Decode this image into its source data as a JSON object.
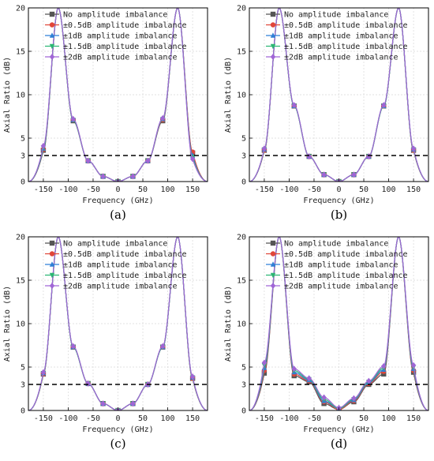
{
  "legend": [
    {
      "label": "No amplitude imbalance",
      "color": "#555555",
      "marker": "square"
    },
    {
      "label": "±0.5dB amplitude imbalance",
      "color": "#e0463a",
      "marker": "circle"
    },
    {
      "label": "±1dB amplitude imbalance",
      "color": "#2f7fd6",
      "marker": "triangle-up"
    },
    {
      "label": "±1.5dB amplitude imbalance",
      "color": "#2bb673",
      "marker": "triangle-down"
    },
    {
      "label": "±2dB amplitude imbalance",
      "color": "#a066d6",
      "marker": "diamond"
    }
  ],
  "chart_data": [
    {
      "type": "line",
      "panel_label": "(a)",
      "xlabel": "Frequency (GHz)",
      "ylabel": "Axial Ratio (dB)",
      "xlim": [
        -180,
        180
      ],
      "ylim": [
        0,
        20
      ],
      "xticks": [
        -150,
        -100,
        -50,
        0,
        50,
        100,
        150
      ],
      "yticks": [
        0,
        3,
        5,
        10,
        15,
        20
      ],
      "threshold": 3,
      "x": [
        -150,
        -120,
        -90,
        -60,
        -30,
        0,
        30,
        60,
        90,
        120,
        150
      ],
      "series": [
        {
          "name": "No amplitude imbalance",
          "values": [
            3.6,
            20,
            7.0,
            2.4,
            0.6,
            0.0,
            0.6,
            2.4,
            7.0,
            20,
            3.3
          ]
        },
        {
          "name": "±0.5dB amplitude imbalance",
          "values": [
            3.7,
            20,
            7.1,
            2.4,
            0.6,
            0.0,
            0.6,
            2.4,
            7.1,
            20,
            3.4
          ]
        },
        {
          "name": "±1dB amplitude imbalance",
          "values": [
            3.8,
            20,
            7.1,
            2.4,
            0.6,
            0.0,
            0.6,
            2.4,
            7.2,
            20,
            3.0
          ]
        },
        {
          "name": "±1.5dB amplitude imbalance",
          "values": [
            3.9,
            20,
            7.1,
            2.4,
            0.6,
            0.0,
            0.6,
            2.4,
            7.2,
            20,
            2.8
          ]
        },
        {
          "name": "±2dB amplitude imbalance",
          "values": [
            4.1,
            20,
            7.2,
            2.4,
            0.6,
            0.0,
            0.6,
            2.4,
            7.3,
            20,
            2.6
          ]
        }
      ]
    },
    {
      "type": "line",
      "panel_label": "(b)",
      "xlabel": "Frequency (GHz)",
      "ylabel": "Axial Ratio (dB)",
      "xlim": [
        -180,
        180
      ],
      "ylim": [
        0,
        20
      ],
      "xticks": [
        -150,
        -100,
        -50,
        0,
        50,
        100,
        150
      ],
      "yticks": [
        0,
        3,
        5,
        10,
        15,
        20
      ],
      "threshold": 3,
      "x": [
        -150,
        -120,
        -90,
        -60,
        -30,
        0,
        30,
        60,
        90,
        120,
        150
      ],
      "series": [
        {
          "name": "No amplitude imbalance",
          "values": [
            3.6,
            20,
            8.7,
            2.9,
            0.8,
            0.0,
            0.8,
            2.9,
            8.7,
            20,
            3.6
          ]
        },
        {
          "name": "±0.5dB amplitude imbalance",
          "values": [
            3.6,
            20,
            8.7,
            2.9,
            0.8,
            0.0,
            0.8,
            2.9,
            8.7,
            20,
            3.6
          ]
        },
        {
          "name": "±1dB amplitude imbalance",
          "values": [
            3.7,
            20,
            8.7,
            2.9,
            0.8,
            0.0,
            0.8,
            2.9,
            8.7,
            20,
            3.7
          ]
        },
        {
          "name": "±1.5dB amplitude imbalance",
          "values": [
            3.7,
            20,
            8.7,
            2.9,
            0.8,
            0.0,
            0.8,
            2.9,
            8.7,
            20,
            3.7
          ]
        },
        {
          "name": "±2dB amplitude imbalance",
          "values": [
            3.8,
            20,
            8.8,
            2.9,
            0.8,
            0.0,
            0.8,
            2.9,
            8.8,
            20,
            3.8
          ]
        }
      ]
    },
    {
      "type": "line",
      "panel_label": "(c)",
      "xlabel": "Frequency (GHz)",
      "ylabel": "Axial Ratio (dB)",
      "xlim": [
        -180,
        180
      ],
      "ylim": [
        0,
        20
      ],
      "xticks": [
        -150,
        -100,
        -50,
        0,
        50,
        100,
        150
      ],
      "yticks": [
        0,
        3,
        5,
        10,
        15,
        20
      ],
      "threshold": 3,
      "x": [
        -150,
        -120,
        -90,
        -60,
        -30,
        0,
        30,
        60,
        90,
        120,
        150
      ],
      "series": [
        {
          "name": "No amplitude imbalance",
          "values": [
            4.2,
            20,
            7.3,
            3.1,
            0.8,
            0.0,
            0.8,
            3.0,
            7.3,
            20,
            3.7
          ]
        },
        {
          "name": "±0.5dB amplitude imbalance",
          "values": [
            4.2,
            20,
            7.3,
            3.1,
            0.8,
            0.0,
            0.8,
            3.0,
            7.3,
            20,
            3.7
          ]
        },
        {
          "name": "±1dB amplitude imbalance",
          "values": [
            4.3,
            20,
            7.3,
            3.1,
            0.8,
            0.0,
            0.8,
            3.0,
            7.3,
            20,
            3.8
          ]
        },
        {
          "name": "±1.5dB amplitude imbalance",
          "values": [
            4.3,
            20,
            7.3,
            3.1,
            0.8,
            0.0,
            0.8,
            3.0,
            7.3,
            20,
            3.8
          ]
        },
        {
          "name": "±2dB amplitude imbalance",
          "values": [
            4.4,
            20,
            7.4,
            3.1,
            0.8,
            0.0,
            0.8,
            3.0,
            7.4,
            20,
            3.9
          ]
        }
      ]
    },
    {
      "type": "line",
      "panel_label": "(d)",
      "xlabel": "Frequency (GHz)",
      "ylabel": "Axial Ratio (dB)",
      "xlim": [
        -180,
        180
      ],
      "ylim": [
        0,
        20
      ],
      "xticks": [
        -150,
        -100,
        -50,
        0,
        50,
        100,
        150
      ],
      "yticks": [
        0,
        3,
        5,
        10,
        15,
        20
      ],
      "threshold": 3,
      "x": [
        -150,
        -120,
        -90,
        -60,
        -30,
        0,
        30,
        60,
        90,
        120,
        150
      ],
      "series": [
        {
          "name": "No amplitude imbalance",
          "values": [
            4.3,
            20,
            4.0,
            3.3,
            0.8,
            0.1,
            1.0,
            3.0,
            4.2,
            20,
            4.4
          ]
        },
        {
          "name": "±0.5dB amplitude imbalance",
          "values": [
            4.6,
            20,
            4.2,
            3.4,
            1.0,
            0.1,
            1.1,
            3.1,
            4.5,
            20,
            4.6
          ]
        },
        {
          "name": "±1dB amplitude imbalance",
          "values": [
            4.9,
            20,
            4.4,
            3.5,
            1.1,
            0.2,
            1.2,
            3.2,
            4.7,
            20,
            4.8
          ]
        },
        {
          "name": "±1.5dB amplitude imbalance",
          "values": [
            5.2,
            20,
            4.6,
            3.6,
            1.3,
            0.2,
            1.3,
            3.3,
            4.9,
            20,
            5.0
          ]
        },
        {
          "name": "±2dB amplitude imbalance",
          "values": [
            5.5,
            20,
            4.8,
            3.7,
            1.5,
            0.3,
            1.4,
            3.4,
            5.1,
            20,
            5.2
          ]
        }
      ]
    }
  ]
}
